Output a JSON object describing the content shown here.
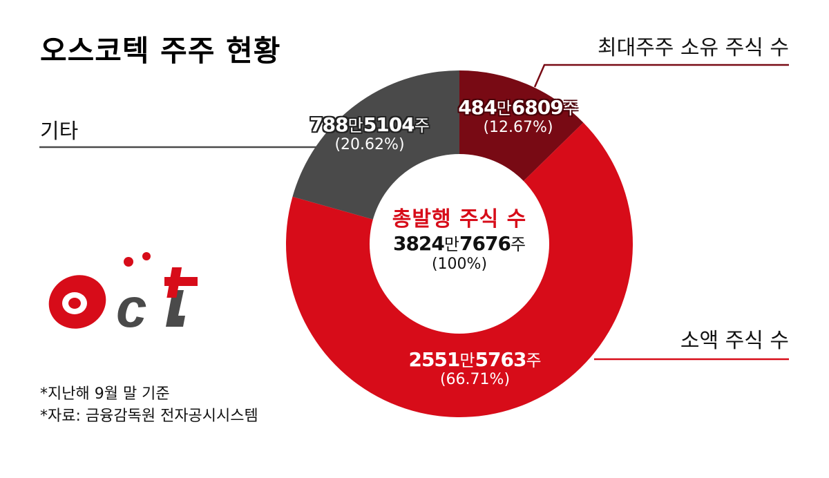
{
  "title": "오스코텍 주주 현황",
  "legend_labels": {
    "major": "최대주주 소유 주식 수",
    "etc": "기타",
    "minor": "소액 주식 수"
  },
  "segments": {
    "major": {
      "num1": "484",
      "unit1": "만",
      "num2": "6809",
      "unit2": "주",
      "pct": "(12.67%)"
    },
    "etc": {
      "num1": "788",
      "unit1": "만",
      "num2": "5104",
      "unit2": "주",
      "pct": "(20.62%)"
    },
    "minor": {
      "num1": "2551",
      "unit1": "만",
      "num2": "5763",
      "unit2": "주",
      "pct": "(66.71%)"
    }
  },
  "center": {
    "title": "총발행 주식 수",
    "num1": "3824",
    "unit1": "만",
    "num2": "7676",
    "unit2": "주",
    "pct": "(100%)"
  },
  "notes": [
    "*지난해 9월 말 기준",
    "*자료: 금융감독원 전자공시시스템"
  ],
  "logo": {
    "name": "oct-logo"
  },
  "colors": {
    "major": "#780a14",
    "minor": "#d70c19",
    "etc": "#4a4a4a",
    "center_title": "#d70c19"
  },
  "chart_data": {
    "type": "pie",
    "subtype": "donut",
    "title": "오스코텍 주주 현황",
    "center_label": "총발행 주식 수 3824만7676주 (100%)",
    "categories": [
      "최대주주 소유 주식 수",
      "소액 주식 수",
      "기타"
    ],
    "values": [
      4846809,
      25515763,
      7885104
    ],
    "percentages": [
      12.67,
      66.71,
      20.62
    ],
    "value_labels": [
      "484만6809주",
      "2551만5763주",
      "788만5104주"
    ],
    "total": 38247676,
    "colors": [
      "#780a14",
      "#d70c19",
      "#4a4a4a"
    ],
    "start_angle": "12 o'clock, clockwise",
    "notes": [
      "*지난해 9월 말 기준",
      "*자료: 금융감독원 전자공시시스템"
    ]
  }
}
